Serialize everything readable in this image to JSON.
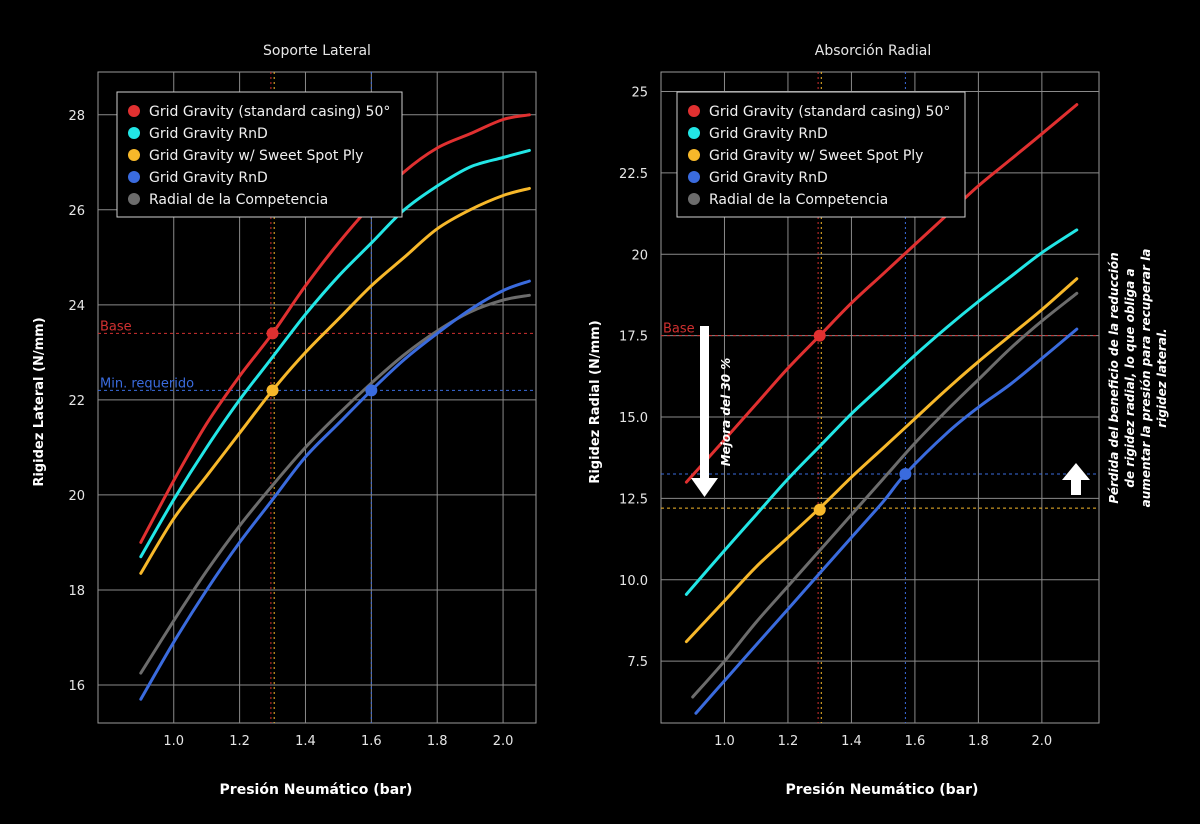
{
  "chart_data": [
    {
      "type": "line",
      "title": "Soporte Lateral",
      "xlabel": "Presión Neumático (bar)",
      "ylabel": "Rigidez Lateral (N/mm)",
      "xlim": [
        0.77,
        2.1
      ],
      "ylim": [
        15.2,
        28.9
      ],
      "x_ticks": [
        1.0,
        1.2,
        1.4,
        1.6,
        1.8,
        2.0
      ],
      "x_tick_labels": [
        "1.0",
        "1.2",
        "1.4",
        "1.6",
        "1.8",
        "2.0"
      ],
      "y_ticks": [
        16,
        18,
        20,
        22,
        24,
        26,
        28
      ],
      "y_tick_labels": [
        "16",
        "18",
        "20",
        "22",
        "24",
        "26",
        "28"
      ],
      "grid": true,
      "legend_position": "top-left",
      "series": [
        {
          "name": "Grid Gravity (standard casing) 50°",
          "color": "#e03030",
          "x": [
            0.9,
            1.0,
            1.1,
            1.2,
            1.3,
            1.4,
            1.5,
            1.6,
            1.7,
            1.8,
            1.9,
            2.0,
            2.08
          ],
          "y": [
            19.0,
            20.3,
            21.5,
            22.5,
            23.4,
            24.4,
            25.3,
            26.1,
            26.8,
            27.3,
            27.6,
            27.9,
            28.0
          ]
        },
        {
          "name": "Grid Gravity RnD",
          "color": "#22e6e6",
          "x": [
            0.9,
            1.0,
            1.1,
            1.2,
            1.3,
            1.4,
            1.5,
            1.6,
            1.7,
            1.8,
            1.9,
            2.0,
            2.08
          ],
          "y": [
            18.7,
            19.9,
            21.0,
            22.0,
            22.9,
            23.8,
            24.6,
            25.3,
            26.0,
            26.5,
            26.9,
            27.1,
            27.25
          ]
        },
        {
          "name": "Grid Gravity w/ Sweet Spot Ply",
          "color": "#f7b82a",
          "x": [
            0.9,
            1.0,
            1.1,
            1.2,
            1.3,
            1.4,
            1.5,
            1.6,
            1.7,
            1.8,
            1.9,
            2.0,
            2.08
          ],
          "y": [
            18.35,
            19.5,
            20.4,
            21.3,
            22.2,
            23.0,
            23.7,
            24.4,
            25.0,
            25.6,
            26.0,
            26.3,
            26.45
          ]
        },
        {
          "name": "Grid Gravity RnD",
          "color": "#3a6bde",
          "x": [
            0.9,
            1.0,
            1.1,
            1.2,
            1.3,
            1.4,
            1.5,
            1.6,
            1.7,
            1.8,
            1.9,
            2.0,
            2.08
          ],
          "y": [
            15.7,
            16.9,
            18.0,
            19.0,
            19.9,
            20.8,
            21.5,
            22.2,
            22.85,
            23.4,
            23.9,
            24.3,
            24.5
          ]
        },
        {
          "name": "Radial de la Competencia",
          "color": "#6c6c6c",
          "x": [
            0.9,
            1.0,
            1.1,
            1.2,
            1.3,
            1.4,
            1.5,
            1.6,
            1.7,
            1.8,
            1.9,
            2.0,
            2.08
          ],
          "y": [
            16.25,
            17.35,
            18.4,
            19.35,
            20.2,
            21.0,
            21.7,
            22.35,
            22.95,
            23.45,
            23.85,
            24.1,
            24.2
          ]
        }
      ],
      "reference_lines": [
        {
          "label": "Base",
          "y": 23.4,
          "color": "#d03030"
        },
        {
          "label": "Min. requerido",
          "y": 22.2,
          "color": "#3a6bde"
        }
      ],
      "vertical_guides": [
        {
          "x": 1.295,
          "color": "#d03030"
        },
        {
          "x": 1.305,
          "color": "#f7b82a"
        },
        {
          "x": 1.6,
          "color": "#3a6bde"
        }
      ],
      "markers": [
        {
          "x": 1.3,
          "y": 23.4,
          "color": "#e03030"
        },
        {
          "x": 1.3,
          "y": 22.2,
          "color": "#f7b82a"
        },
        {
          "x": 1.6,
          "y": 22.2,
          "color": "#3a6bde"
        }
      ]
    },
    {
      "type": "line",
      "title": "Absorción Radial",
      "xlabel": "Presión Neumático (bar)",
      "ylabel": "Rigidez Radial (N/mm)",
      "xlim": [
        0.8,
        2.18
      ],
      "ylim": [
        5.6,
        25.6
      ],
      "x_ticks": [
        1.0,
        1.2,
        1.4,
        1.6,
        1.8,
        2.0
      ],
      "x_tick_labels": [
        "1.0",
        "1.2",
        "1.4",
        "1.6",
        "1.8",
        "2.0"
      ],
      "y_ticks": [
        7.5,
        10.0,
        12.5,
        15.0,
        17.5,
        20,
        22.5,
        25
      ],
      "y_tick_labels": [
        "7.5",
        "10.0",
        "12.5",
        "15.0",
        "17.5",
        "20",
        "22.5",
        "25"
      ],
      "grid": true,
      "legend_position": "top-left",
      "series": [
        {
          "name": "Grid Gravity (standard casing) 50°",
          "color": "#e03030",
          "x": [
            0.88,
            1.0,
            1.1,
            1.2,
            1.3,
            1.4,
            1.5,
            1.6,
            1.7,
            1.8,
            1.9,
            2.0,
            2.11
          ],
          "y": [
            13.0,
            14.3,
            15.4,
            16.5,
            17.5,
            18.5,
            19.4,
            20.3,
            21.2,
            22.1,
            22.9,
            23.7,
            24.6
          ]
        },
        {
          "name": "Grid Gravity RnD",
          "color": "#22e6e6",
          "x": [
            0.88,
            1.0,
            1.1,
            1.2,
            1.3,
            1.4,
            1.5,
            1.6,
            1.7,
            1.8,
            1.9,
            2.0,
            2.11
          ],
          "y": [
            9.55,
            10.9,
            12.0,
            13.1,
            14.1,
            15.1,
            16.0,
            16.9,
            17.75,
            18.55,
            19.3,
            20.05,
            20.75
          ]
        },
        {
          "name": "Grid Gravity w/ Sweet Spot Ply",
          "color": "#f7b82a",
          "x": [
            0.88,
            1.0,
            1.1,
            1.2,
            1.3,
            1.4,
            1.5,
            1.6,
            1.7,
            1.8,
            1.9,
            2.0,
            2.11
          ],
          "y": [
            8.1,
            9.35,
            10.4,
            11.3,
            12.2,
            13.15,
            14.05,
            14.95,
            15.85,
            16.7,
            17.5,
            18.3,
            19.25
          ]
        },
        {
          "name": "Grid Gravity RnD",
          "color": "#3a6bde",
          "x": [
            0.91,
            1.0,
            1.1,
            1.2,
            1.3,
            1.4,
            1.5,
            1.57,
            1.7,
            1.8,
            1.9,
            2.0,
            2.11
          ],
          "y": [
            5.9,
            6.9,
            8.0,
            9.1,
            10.2,
            11.3,
            12.4,
            13.25,
            14.5,
            15.3,
            16.0,
            16.8,
            17.7
          ]
        },
        {
          "name": "Radial de la Competencia",
          "color": "#6c6c6c",
          "x": [
            0.9,
            1.0,
            1.1,
            1.2,
            1.3,
            1.4,
            1.5,
            1.6,
            1.7,
            1.8,
            1.9,
            2.0,
            2.11
          ],
          "y": [
            6.4,
            7.5,
            8.7,
            9.8,
            10.9,
            12.0,
            13.1,
            14.2,
            15.2,
            16.15,
            17.1,
            17.95,
            18.8
          ]
        }
      ],
      "reference_lines": [
        {
          "label": "Base",
          "y": 17.5,
          "color": "#d03030"
        },
        {
          "label": "",
          "y": 13.25,
          "color": "#3a6bde"
        },
        {
          "label": "",
          "y": 12.2,
          "color": "#f7b82a"
        }
      ],
      "vertical_guides": [
        {
          "x": 1.295,
          "color": "#d03030"
        },
        {
          "x": 1.305,
          "color": "#f7b82a"
        },
        {
          "x": 1.57,
          "color": "#3a6bde"
        }
      ],
      "markers": [
        {
          "x": 1.3,
          "y": 17.5,
          "color": "#e03030"
        },
        {
          "x": 1.3,
          "y": 12.15,
          "color": "#f7b82a"
        },
        {
          "x": 1.57,
          "y": 13.25,
          "color": "#3a6bde"
        }
      ],
      "annotations": {
        "improvement_label": "Mejora del 30 %",
        "improvement_arrow": {
          "from_y": 17.5,
          "to_y": 12.2,
          "direction": "down"
        },
        "side_arrow": {
          "direction": "up"
        },
        "side_note_lines": [
          "Pérdida del beneficio de la reducción",
          "de rigidez radial, lo que obliga a",
          "aumentar la presión para recuperar la",
          "rigidez lateral."
        ]
      }
    }
  ]
}
